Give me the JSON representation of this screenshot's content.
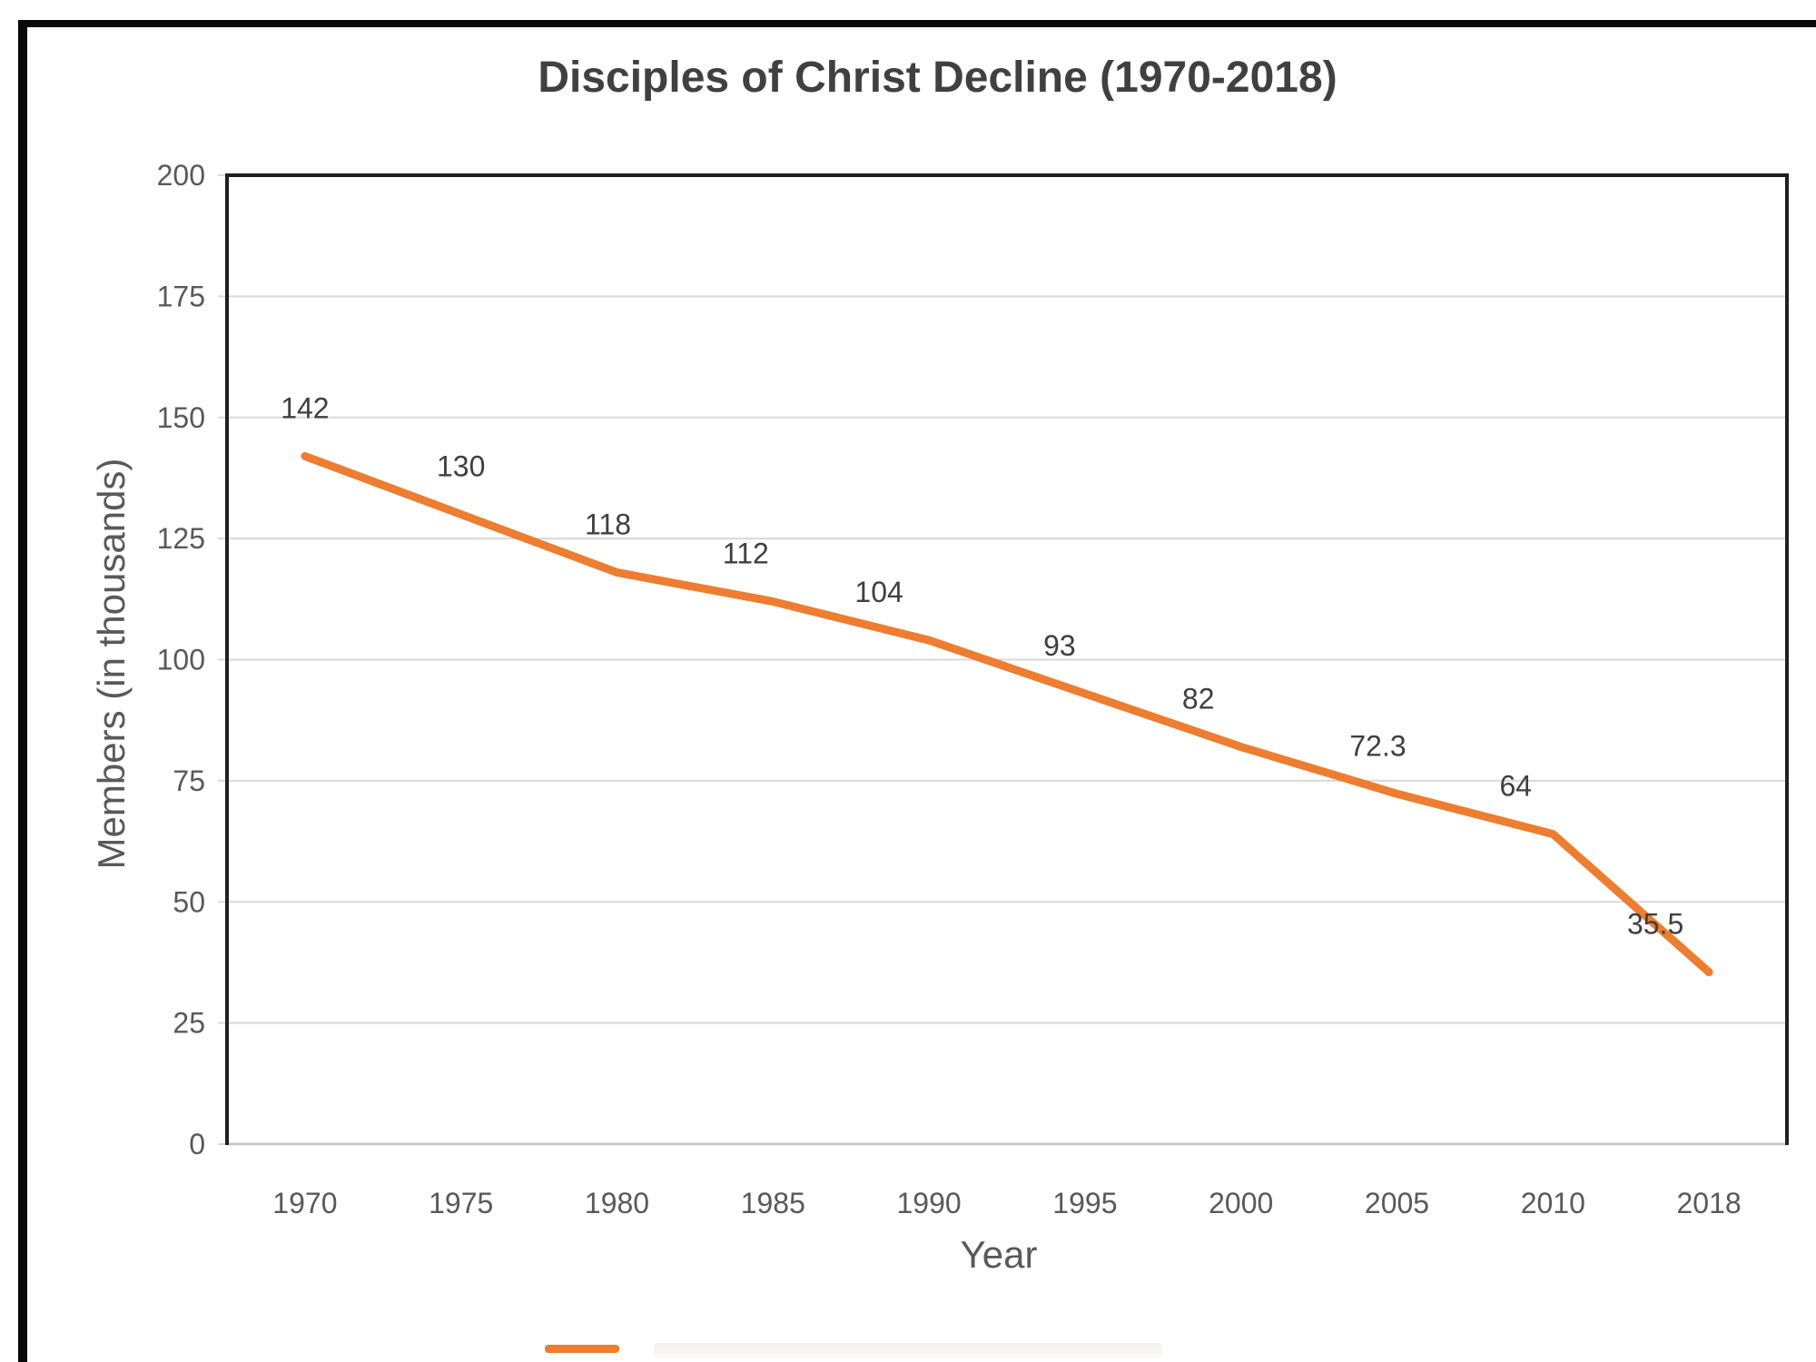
{
  "chart": {
    "title": "Disciples of Christ Decline (1970-2018)",
    "x_axis_title": "Year",
    "y_axis_title": "Members (in thousands)"
  },
  "chart_data": {
    "type": "line",
    "title": "Disciples of Christ Decline (1970-2018)",
    "xlabel": "Year",
    "ylabel": "Members (in thousands)",
    "categories": [
      "1970",
      "1975",
      "1980",
      "1985",
      "1990",
      "1995",
      "2000",
      "2005",
      "2010",
      "2018"
    ],
    "series": [
      {
        "name": "Members (in thousands)",
        "values": [
          142,
          130,
          118,
          112,
          104,
          93,
          82,
          72.3,
          64,
          35.5
        ],
        "data_labels": [
          "142",
          "130",
          "118",
          "112",
          "104",
          "93",
          "82",
          "72.3",
          "64",
          "35.5"
        ],
        "color": "#ED7D31"
      }
    ],
    "y_ticks": [
      0,
      25,
      50,
      75,
      100,
      125,
      150,
      175,
      200
    ],
    "ylim": [
      0,
      200
    ],
    "grid": true,
    "grid_color": "#d9d9d9",
    "legend_position": "bottom-cut-off"
  },
  "colors": {
    "line": "#ED7D31",
    "grid": "#d9d9d9",
    "plot_border_dark": "#1f1f1f",
    "plot_border_light": "#c9c9c9",
    "tick_text": "#595959",
    "title_text": "#404040",
    "image_border": "#0a0a0a"
  }
}
